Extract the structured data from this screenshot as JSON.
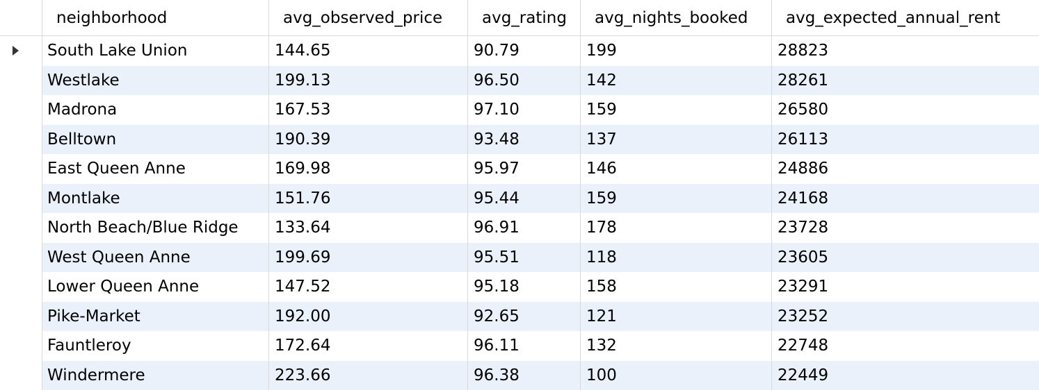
{
  "table": {
    "columns": [
      "neighborhood",
      "avg_observed_price",
      "avg_rating",
      "avg_nights_booked",
      "avg_expected_annual_rent"
    ],
    "current_row_marker": "row-pointer-icon",
    "rows": [
      [
        "South Lake Union",
        "144.65",
        "90.79",
        "199",
        "28823"
      ],
      [
        "Westlake",
        "199.13",
        "96.50",
        "142",
        "28261"
      ],
      [
        "Madrona",
        "167.53",
        "97.10",
        "159",
        "26580"
      ],
      [
        "Belltown",
        "190.39",
        "93.48",
        "137",
        "26113"
      ],
      [
        "East Queen Anne",
        "169.98",
        "95.97",
        "146",
        "24886"
      ],
      [
        "Montlake",
        "151.76",
        "95.44",
        "159",
        "24168"
      ],
      [
        "North Beach/Blue Ridge",
        "133.64",
        "96.91",
        "178",
        "23728"
      ],
      [
        "West Queen Anne",
        "199.69",
        "95.51",
        "118",
        "23605"
      ],
      [
        "Lower Queen Anne",
        "147.52",
        "95.18",
        "158",
        "23291"
      ],
      [
        "Pike-Market",
        "192.00",
        "92.65",
        "121",
        "23252"
      ],
      [
        "Fauntleroy",
        "172.64",
        "96.11",
        "132",
        "22748"
      ],
      [
        "Windermere",
        "223.66",
        "96.38",
        "100",
        "22449"
      ]
    ]
  },
  "colors": {
    "alt_row": "#eaf1fb",
    "grid_line": "#d9d9d9"
  }
}
